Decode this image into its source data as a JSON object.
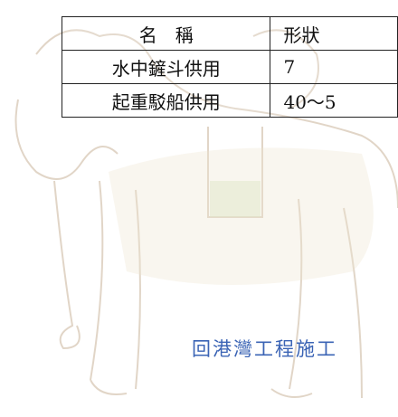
{
  "table": {
    "header": [
      "名　稱",
      "形狀"
    ],
    "rows": [
      [
        "水中鏟斗供用",
        "7"
      ],
      [
        "起重駁船供用",
        "40～5"
      ]
    ]
  },
  "caption": "回港灣工程施工"
}
